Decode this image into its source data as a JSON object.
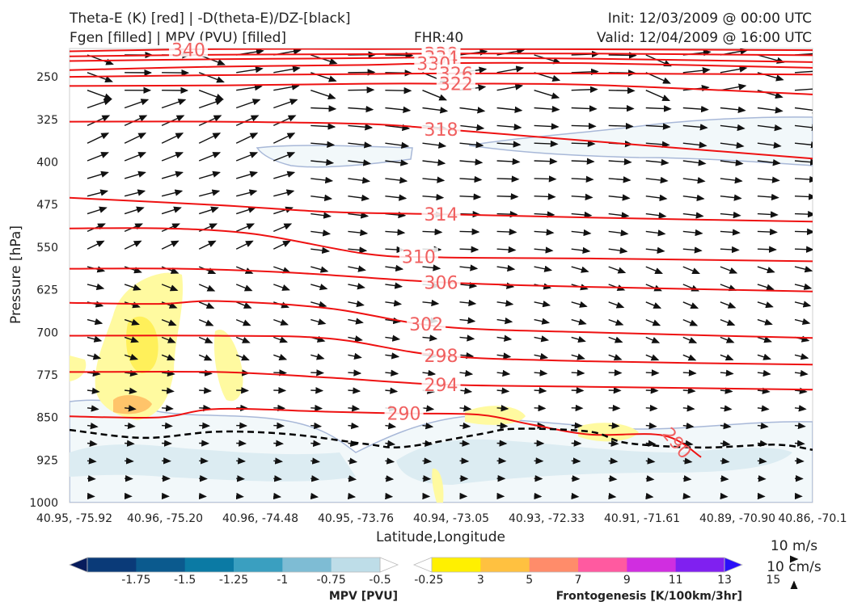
{
  "header": {
    "title_left_1": "Theta-E (K) [red] | -D(theta-E)/DZ-[black]",
    "title_left_2": "Fgen [filled] | MPV (PVU) [filled]",
    "title_center": "FHR:40",
    "title_right_1": "Init: 12/03/2009 @ 00:00 UTC",
    "title_right_2": "Valid: 12/04/2009 @ 16:00 UTC"
  },
  "chart_data": {
    "type": "cross-section",
    "xlabel": "Latitude,Longitude",
    "ylabel": "Pressure [hPa]",
    "x_ticks": [
      "40.95, -75.92",
      "40.96, -75.20",
      "40.96, -74.48",
      "40.95, -73.76",
      "40.94, -73.05",
      "40.93, -72.33",
      "40.91, -71.61",
      "40.89, -70.90",
      "40.86, -70.1"
    ],
    "y_ticks": [
      250,
      325,
      400,
      475,
      550,
      625,
      700,
      775,
      850,
      925,
      1000
    ],
    "ylim": [
      1000,
      200
    ],
    "theta_e_contours": [
      {
        "label": "340",
        "points": [
          [
            0,
            205
          ],
          [
            0.2,
            201
          ],
          [
            0.4,
            201
          ],
          [
            0.6,
            201
          ],
          [
            0.8,
            202
          ],
          [
            1.0,
            203
          ]
        ]
      },
      {
        "label": "338",
        "points": [
          [
            0,
            214
          ],
          [
            0.2,
            211
          ],
          [
            0.4,
            210
          ],
          [
            0.5,
            209
          ],
          [
            0.7,
            209
          ],
          [
            1.0,
            212
          ]
        ]
      },
      {
        "label": "334",
        "points": [
          [
            0,
            222
          ],
          [
            0.2,
            219
          ],
          [
            0.4,
            217
          ],
          [
            0.5,
            216
          ],
          [
            0.7,
            218
          ],
          [
            1.0,
            224
          ]
        ]
      },
      {
        "label": "330",
        "points": [
          [
            0,
            238
          ],
          [
            0.2,
            232
          ],
          [
            0.4,
            229
          ],
          [
            0.5,
            226
          ],
          [
            0.7,
            226
          ],
          [
            1.0,
            234
          ]
        ]
      },
      {
        "label": "326",
        "points": [
          [
            0,
            250
          ],
          [
            0.2,
            247
          ],
          [
            0.4,
            245
          ],
          [
            0.5,
            244
          ],
          [
            0.7,
            244
          ],
          [
            1.0,
            246
          ]
        ]
      },
      {
        "label": "322",
        "points": [
          [
            0,
            266
          ],
          [
            0.2,
            265
          ],
          [
            0.4,
            262
          ],
          [
            0.5,
            262
          ],
          [
            0.7,
            264
          ],
          [
            1.0,
            281
          ]
        ]
      },
      {
        "label": "318",
        "points": [
          [
            0,
            329
          ],
          [
            0.2,
            329
          ],
          [
            0.4,
            333
          ],
          [
            0.5,
            342
          ],
          [
            0.7,
            363
          ],
          [
            1.0,
            394
          ]
        ]
      },
      {
        "label": "314",
        "points": [
          [
            0,
            463
          ],
          [
            0.2,
            476
          ],
          [
            0.35,
            488
          ],
          [
            0.5,
            492
          ],
          [
            0.7,
            498
          ],
          [
            1.0,
            505
          ]
        ]
      },
      {
        "label": "310",
        "points": [
          [
            0,
            517
          ],
          [
            0.13,
            517
          ],
          [
            0.25,
            527
          ],
          [
            0.4,
            562
          ],
          [
            0.5,
            568
          ],
          [
            0.7,
            570
          ],
          [
            1.0,
            575
          ]
        ]
      },
      {
        "label": "306",
        "points": [
          [
            0,
            588
          ],
          [
            0.15,
            588
          ],
          [
            0.3,
            595
          ],
          [
            0.5,
            612
          ],
          [
            0.7,
            620
          ],
          [
            1.0,
            628
          ]
        ]
      },
      {
        "label": "302",
        "points": [
          [
            0,
            648
          ],
          [
            0.12,
            650
          ],
          [
            0.2,
            645
          ],
          [
            0.35,
            658
          ],
          [
            0.5,
            690
          ],
          [
            0.7,
            700
          ],
          [
            1.0,
            710
          ]
        ]
      },
      {
        "label": "298",
        "points": [
          [
            0,
            706
          ],
          [
            0.2,
            706
          ],
          [
            0.35,
            711
          ],
          [
            0.5,
            741
          ],
          [
            0.7,
            751
          ],
          [
            1.0,
            757
          ]
        ]
      },
      {
        "label": "294",
        "points": [
          [
            0,
            770
          ],
          [
            0.2,
            770
          ],
          [
            0.35,
            780
          ],
          [
            0.5,
            792
          ],
          [
            0.7,
            796
          ],
          [
            1.0,
            801
          ]
        ]
      },
      {
        "label": "290",
        "points": [
          [
            0,
            848
          ],
          [
            0.12,
            850
          ],
          [
            0.2,
            835
          ],
          [
            0.35,
            840
          ],
          [
            0.45,
            843
          ],
          [
            0.55,
            845
          ],
          [
            0.62,
            862
          ],
          [
            0.7,
            880
          ],
          [
            0.8,
            882
          ],
          [
            0.85,
            920
          ]
        ]
      }
    ],
    "stability_dashed": {
      "points": [
        [
          0,
          872
        ],
        [
          0.1,
          886
        ],
        [
          0.2,
          875
        ],
        [
          0.3,
          880
        ],
        [
          0.4,
          897
        ],
        [
          0.45,
          902
        ],
        [
          0.55,
          880
        ],
        [
          0.6,
          870
        ],
        [
          0.7,
          875
        ],
        [
          0.75,
          895
        ],
        [
          0.85,
          903
        ],
        [
          0.95,
          898
        ],
        [
          1.0,
          907
        ]
      ]
    },
    "fgen_levels": [
      3,
      5,
      7,
      9,
      11,
      13,
      15
    ],
    "fgen_colors": [
      "#ffffff",
      "#fff000",
      "#ffc140",
      "#ff8c6a",
      "#ff5aa0",
      "#d02ee0",
      "#8020f0",
      "#2a10f8"
    ],
    "mpv_levels": [
      -1.75,
      -1.5,
      -1.25,
      -1.0,
      -0.75,
      -0.5,
      -0.25
    ],
    "mpv_colors": [
      "#081c5c",
      "#0a3a78",
      "#0b5a8e",
      "#0b7aa4",
      "#3a9fc0",
      "#7ebcd4",
      "#bedde8",
      "#ffffff"
    ],
    "mpv_label": "MPV [PVU]",
    "fgen_label": "Frontogenesis [K/100km/3hr]",
    "wind_key": {
      "horizontal": "10 m/s",
      "vertical": "10 cm/s"
    }
  }
}
